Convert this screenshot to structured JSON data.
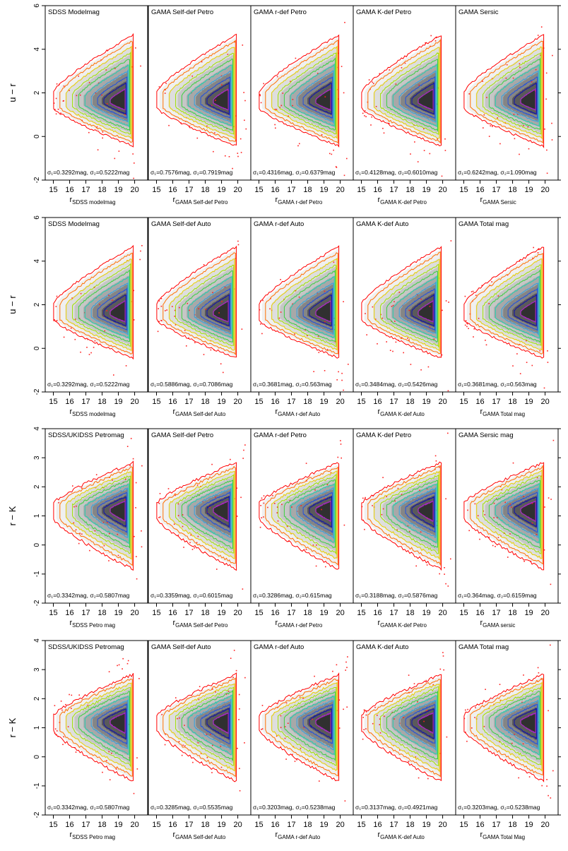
{
  "chart_data": {
    "type": "heatmap",
    "contour_colors": [
      "#ff0000",
      "#ff7000",
      "#e8d000",
      "#9ee000",
      "#3ad040",
      "#20d0b0",
      "#30a0e0",
      "#2050e0",
      "#1010b0",
      "#b020d0"
    ],
    "xlim": [
      14.5,
      20.8
    ],
    "xticks": [
      15,
      16,
      17,
      18,
      19,
      20
    ],
    "rows": [
      {
        "ylabel": "u − r",
        "ylim": [
          -2,
          6
        ],
        "yticks": [
          -2,
          0,
          2,
          4,
          6
        ],
        "center_y": 1.6,
        "spread_up": 3.0,
        "spread_down": 2.0,
        "panels": [
          {
            "title": "SDSS Modelmag",
            "sigma_text": "σ₁=0.3292mag, σ₂=0.5222mag",
            "xlabel_main": "r",
            "xlabel_sub": "SDSS modelmag"
          },
          {
            "title": "GAMA Self-def Petro",
            "sigma_text": "σ₁=0.7576mag, σ₂=0.7919mag",
            "xlabel_main": "r",
            "xlabel_sub": "GAMA Self-def Petro"
          },
          {
            "title": "GAMA r-def Petro",
            "sigma_text": "σ₁=0.4316mag, σ₂=0.6379mag",
            "xlabel_main": "r",
            "xlabel_sub": "GAMA r-def Petro"
          },
          {
            "title": "GAMA K-def Petro",
            "sigma_text": "σ₁=0.4128mag, σ₂=0.6010mag",
            "xlabel_main": "r",
            "xlabel_sub": "GAMA K-def Petro"
          },
          {
            "title": "GAMA Sersic",
            "sigma_text": "σ₁=0.6242mag, σ₂=1.090mag",
            "xlabel_main": "r",
            "xlabel_sub": "GAMA Sersic"
          }
        ]
      },
      {
        "ylabel": "u − r",
        "ylim": [
          -2,
          6
        ],
        "yticks": [
          -2,
          0,
          2,
          4,
          6
        ],
        "center_y": 1.6,
        "spread_up": 3.0,
        "spread_down": 2.0,
        "panels": [
          {
            "title": "SDSS Modelmag",
            "sigma_text": "σ₁=0.3292mag, σ₂=0.5222mag",
            "xlabel_main": "r",
            "xlabel_sub": "SDSS modelmag"
          },
          {
            "title": "GAMA Self-def Auto",
            "sigma_text": "σ₁=0.5886mag, σ₂=0.7086mag",
            "xlabel_main": "r",
            "xlabel_sub": "GAMA Self-def Auto"
          },
          {
            "title": "GAMA r-def Auto",
            "sigma_text": "σ₁=0.3681mag, σ₂=0.563mag",
            "xlabel_main": "r",
            "xlabel_sub": "GAMA r-def Auto"
          },
          {
            "title": "GAMA K-def Auto",
            "sigma_text": "σ₁=0.3484mag, σ₂=0.5426mag",
            "xlabel_main": "r",
            "xlabel_sub": "GAMA K-def Auto"
          },
          {
            "title": "GAMA Total mag",
            "sigma_text": "σ₁=0.3681mag, σ₂=0.563mag",
            "xlabel_main": "r",
            "xlabel_sub": "GAMA Total mag"
          }
        ]
      },
      {
        "ylabel": "r − K",
        "ylim": [
          -2,
          4
        ],
        "yticks": [
          -2,
          -1,
          0,
          1,
          2,
          3,
          4
        ],
        "center_y": 1.2,
        "spread_up": 1.6,
        "spread_down": 2.0,
        "panels": [
          {
            "title": "SDSS/UKIDSS Petromag",
            "sigma_text": "σ₁=0.3342mag, σ₂=0.5807mag",
            "xlabel_main": "r",
            "xlabel_sub": "SDSS Petro mag"
          },
          {
            "title": "GAMA Self-def Petro",
            "sigma_text": "σ₁=0.3359mag, σ₂=0.6015mag",
            "xlabel_main": "r",
            "xlabel_sub": "GAMA Self-def Petro"
          },
          {
            "title": "GAMA r-def Petro",
            "sigma_text": "σ₁=0.3286mag, σ₂=0.615mag",
            "xlabel_main": "r",
            "xlabel_sub": "GAMA r-def Petro"
          },
          {
            "title": "GAMA K-def Petro",
            "sigma_text": "σ₁=0.3188mag, σ₂=0.5876mag",
            "xlabel_main": "r",
            "xlabel_sub": "GAMA K-def Petro"
          },
          {
            "title": "GAMA Sersic mag",
            "sigma_text": "σ₁=0.364mag, σ₂=0.6159mag",
            "xlabel_main": "r",
            "xlabel_sub": "GAMA sersic"
          }
        ]
      },
      {
        "ylabel": "r − K",
        "ylim": [
          -2,
          4
        ],
        "yticks": [
          -2,
          -1,
          0,
          1,
          2,
          3,
          4
        ],
        "center_y": 1.2,
        "spread_up": 1.6,
        "spread_down": 2.0,
        "panels": [
          {
            "title": "SDSS/UKIDSS Petromag",
            "sigma_text": "σ₁=0.3342mag, σ₂=0.5807mag",
            "xlabel_main": "r",
            "xlabel_sub": "SDSS Petro mag"
          },
          {
            "title": "GAMA Self-def Auto",
            "sigma_text": "σ₁=0.3285mag, σ₂=0.5535mag",
            "xlabel_main": "r",
            "xlabel_sub": "GAMA Self-def Auto"
          },
          {
            "title": "GAMA r-def Auto",
            "sigma_text": "σ₁=0.3203mag, σ₂=0.5238mag",
            "xlabel_main": "r",
            "xlabel_sub": "GAMA r-def Auto"
          },
          {
            "title": "GAMA K-def Auto",
            "sigma_text": "σ₁=0.3137mag, σ₂=0.4921mag",
            "xlabel_main": "r",
            "xlabel_sub": "GAMA K-def Auto"
          },
          {
            "title": "GAMA Total mag",
            "sigma_text": "σ₁=0.3203mag, σ₂=0.5238mag",
            "xlabel_main": "r",
            "xlabel_sub": "GAMA Total Mag"
          }
        ]
      }
    ]
  }
}
